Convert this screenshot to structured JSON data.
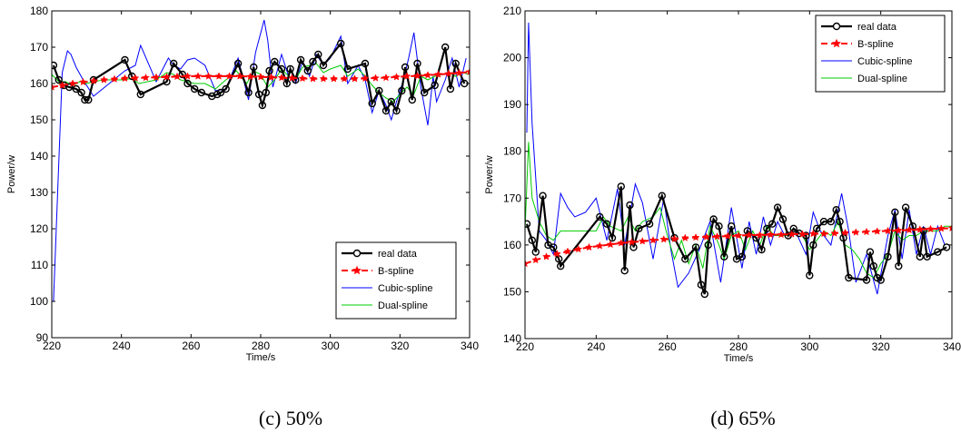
{
  "chart_data": [
    {
      "type": "line",
      "caption": "(c) 50%",
      "xlabel": "Time/s",
      "ylabel": "Power/w",
      "xlim": [
        220,
        340
      ],
      "ylim": [
        90,
        180
      ],
      "xticks": [
        "220",
        "240",
        "260",
        "280",
        "300",
        "320",
        "340"
      ],
      "yticks": [
        "90",
        "100",
        "110",
        "120",
        "130",
        "140",
        "150",
        "160",
        "170",
        "180"
      ],
      "legend_position": "bottom-right",
      "grid": false,
      "series": [
        {
          "name": "real data",
          "color": "#000000",
          "style": "solid-circle",
          "x": [
            220.5,
            222,
            223.5,
            225,
            227,
            228.5,
            229.5,
            230.5,
            232,
            241,
            243,
            245.5,
            253,
            255,
            257.5,
            259,
            261,
            263,
            266,
            267.5,
            268.5,
            270,
            273.5,
            276.5,
            278,
            279.5,
            280.5,
            281.5,
            282.5,
            284,
            286,
            287.5,
            288.5,
            290,
            291.5,
            293.5,
            295,
            296.5,
            298,
            303,
            305,
            310,
            312,
            314,
            316,
            317.5,
            319,
            320.5,
            321.5,
            323.5,
            325,
            327,
            330,
            333,
            334.5,
            336,
            338.5
          ],
          "y": [
            165,
            161,
            159.5,
            159,
            158.5,
            157.5,
            155.5,
            155.5,
            161,
            166.5,
            162,
            157,
            160.5,
            165.5,
            162.5,
            160,
            158.5,
            157.5,
            156.5,
            157,
            157.5,
            158.5,
            165.5,
            157.5,
            164.5,
            157,
            154,
            157.5,
            163.5,
            166,
            164,
            160,
            164,
            161,
            166.5,
            163.5,
            166,
            168,
            165,
            171,
            164,
            165.5,
            154.5,
            158,
            152.5,
            155,
            152.5,
            158,
            164.5,
            155.5,
            165.5,
            157.5,
            159.5,
            170,
            158.5,
            165.5,
            160
          ]
        },
        {
          "name": "B-spline",
          "color": "#ff0000",
          "style": "dashed-star",
          "x": [
            220,
            223,
            226,
            229,
            232,
            235,
            238,
            241,
            244,
            247,
            250,
            253,
            256,
            259,
            262,
            265,
            268,
            271,
            274,
            277,
            280,
            283,
            286,
            289,
            292,
            295,
            298,
            301,
            304,
            307,
            310,
            313,
            316,
            319,
            322,
            325,
            328,
            331,
            334,
            337,
            340
          ],
          "y": [
            159,
            159.5,
            160,
            160.4,
            160.7,
            161,
            161.2,
            161.4,
            161.5,
            161.6,
            161.7,
            161.8,
            161.9,
            162,
            162,
            162,
            162,
            162,
            162,
            161.9,
            161.8,
            161.7,
            161.6,
            161.5,
            161.4,
            161.3,
            161.3,
            161.3,
            161.3,
            161.3,
            161.4,
            161.5,
            161.6,
            161.8,
            162,
            162.1,
            162.3,
            162.5,
            162.7,
            162.9,
            163.2
          ]
        },
        {
          "name": "Cubic-spline",
          "color": "#0000ff",
          "style": "solid",
          "x": [
            220.5,
            223,
            224.5,
            225.5,
            227,
            229,
            232,
            241,
            244,
            245.5,
            250,
            253.5,
            255,
            257,
            259,
            261,
            264,
            267,
            270,
            273.5,
            276.5,
            278.5,
            281,
            282,
            283.5,
            286,
            288,
            290,
            292,
            294,
            296,
            298,
            300,
            303,
            305,
            308,
            310,
            312,
            314,
            316,
            317.5,
            319,
            321,
            322.5,
            324,
            326,
            328,
            329.5,
            330.5,
            333,
            335,
            337,
            339
          ],
          "y": [
            100,
            163,
            169,
            168,
            164.5,
            161,
            156.5,
            163.5,
            165,
            170.5,
            160.5,
            167,
            165,
            164,
            166.5,
            167,
            165,
            158,
            158.5,
            167,
            155.5,
            168.5,
            177.5,
            172,
            159,
            168,
            162,
            160,
            166,
            162,
            168,
            165,
            167,
            173,
            160,
            165,
            161,
            152,
            158,
            154,
            150,
            155,
            161,
            167,
            174,
            159,
            148.5,
            162,
            155,
            161,
            167,
            159,
            167
          ]
        },
        {
          "name": "Dual-spline",
          "color": "#00cc00",
          "style": "solid",
          "x": [
            220,
            222,
            224,
            226,
            228,
            230,
            232,
            235,
            238,
            241,
            243,
            245,
            250,
            253,
            255,
            257,
            259,
            261,
            264,
            267,
            270,
            273,
            276,
            278,
            280,
            282,
            284,
            286,
            288,
            290,
            292,
            294,
            296,
            298,
            300,
            303,
            305,
            308,
            310,
            312,
            314,
            316,
            318,
            320,
            322,
            324,
            326,
            328,
            330,
            332,
            334,
            336,
            338,
            340
          ],
          "y": [
            162.5,
            160.5,
            160.5,
            159.5,
            160.5,
            160,
            160.5,
            161,
            161,
            161,
            161.5,
            160,
            161,
            163,
            162.5,
            161,
            160.5,
            160,
            160,
            158.5,
            161,
            163.5,
            160,
            163.5,
            162.5,
            159,
            161,
            164,
            162,
            161,
            164.5,
            165,
            165.5,
            163,
            164,
            165,
            162,
            164,
            162,
            159.5,
            157.5,
            156,
            155,
            157,
            159,
            157,
            162,
            161,
            162,
            162.5,
            163,
            162,
            163,
            162.5
          ]
        }
      ],
      "annotations": [],
      "title": ""
    },
    {
      "type": "line",
      "caption": "(d) 65%",
      "xlabel": "Time/s",
      "ylabel": "Power/w",
      "xlim": [
        220,
        340
      ],
      "ylim": [
        140,
        210
      ],
      "xticks": [
        "220",
        "240",
        "260",
        "280",
        "300",
        "320",
        "340"
      ],
      "yticks": [
        "140",
        "150",
        "160",
        "170",
        "180",
        "190",
        "200",
        "210"
      ],
      "legend_position": "top-right",
      "grid": false,
      "series": [
        {
          "name": "real data",
          "color": "#000000",
          "style": "solid-circle",
          "x": [
            220.5,
            222,
            223,
            225,
            226.5,
            228,
            229.5,
            230,
            241,
            243,
            244.5,
            247,
            248,
            249.5,
            250.5,
            252,
            255,
            258.5,
            262,
            265,
            268,
            269.5,
            270.5,
            271.5,
            273,
            274.5,
            276,
            278,
            279.5,
            281,
            282.5,
            285,
            286.5,
            288,
            289.5,
            291,
            292.5,
            294,
            295.5,
            297,
            299,
            300,
            301,
            302,
            304,
            306,
            307.5,
            308.5,
            309.5,
            311,
            316,
            317,
            318,
            319,
            320,
            322,
            324,
            325,
            327,
            329,
            331,
            332,
            333,
            336,
            338.5
          ],
          "y": [
            164.5,
            161,
            158.5,
            170.5,
            160,
            159.5,
            157,
            155.5,
            166,
            164.5,
            161.5,
            172.5,
            154.5,
            168.5,
            159.5,
            163.5,
            164.5,
            170.5,
            161.5,
            157,
            159.5,
            151.5,
            149.5,
            160,
            165.5,
            164,
            157.5,
            164,
            157,
            157.5,
            163,
            161.5,
            159,
            163.5,
            164.5,
            168,
            165.5,
            162,
            163.5,
            162.5,
            162,
            153.5,
            160,
            163.5,
            165,
            165,
            167.5,
            165,
            161.5,
            153,
            152.5,
            158.5,
            155.5,
            153,
            152.5,
            157.5,
            167,
            155.5,
            168,
            164,
            157.5,
            163,
            157.5,
            158.5,
            159.5
          ]
        },
        {
          "name": "B-spline",
          "color": "#ff0000",
          "style": "dashed-star",
          "x": [
            220,
            223,
            226,
            229,
            232,
            235,
            238,
            241,
            244,
            247,
            250,
            253,
            256,
            259,
            262,
            265,
            268,
            271,
            274,
            277,
            280,
            283,
            286,
            289,
            292,
            295,
            298,
            301,
            304,
            307,
            310,
            313,
            316,
            319,
            322,
            325,
            328,
            331,
            334,
            337,
            340
          ],
          "y": [
            156,
            156.8,
            157.5,
            158.1,
            158.6,
            159.1,
            159.5,
            159.8,
            160.1,
            160.4,
            160.6,
            160.8,
            161,
            161.2,
            161.3,
            161.5,
            161.6,
            161.7,
            161.8,
            161.9,
            162,
            162.1,
            162.1,
            162.2,
            162.2,
            162.3,
            162.3,
            162.4,
            162.4,
            162.5,
            162.6,
            162.7,
            162.8,
            162.9,
            163,
            163.1,
            163.2,
            163.3,
            163.4,
            163.5,
            163.6
          ]
        },
        {
          "name": "Cubic-spline",
          "color": "#0000ff",
          "style": "solid",
          "x": [
            220.5,
            221,
            222,
            224,
            226,
            228,
            230,
            232,
            234,
            237,
            240,
            243,
            246,
            248,
            251,
            253,
            256,
            259,
            261,
            263,
            266,
            269,
            272,
            275,
            278,
            281,
            283,
            285,
            287,
            289,
            291,
            293,
            296,
            299,
            301,
            303,
            306,
            309,
            311,
            313,
            316,
            319,
            322,
            324,
            326,
            328,
            330,
            332,
            334,
            336,
            338
          ],
          "y": [
            184,
            207.5,
            186,
            163,
            161,
            158,
            171,
            168,
            166,
            167,
            170,
            161,
            172,
            160,
            173,
            169,
            157,
            170,
            159,
            151,
            154,
            159,
            165,
            152,
            168,
            155,
            165,
            158,
            166,
            160,
            165,
            162,
            163,
            158,
            167,
            163,
            160,
            171,
            163,
            152,
            158,
            149.5,
            162,
            167.5,
            157,
            167.5,
            158,
            164,
            158,
            164,
            160
          ]
        },
        {
          "name": "Dual-spline",
          "color": "#00cc00",
          "style": "solid",
          "x": [
            220,
            221,
            222,
            224,
            226,
            228,
            230,
            232,
            236,
            240,
            242,
            244,
            247,
            249,
            251,
            253,
            256,
            258,
            260,
            262,
            264,
            266,
            268,
            270,
            272,
            274,
            276,
            278,
            280,
            282,
            284,
            286,
            288,
            290,
            292,
            294,
            296,
            298,
            300,
            302,
            304,
            306,
            308,
            310,
            312,
            314,
            316,
            318,
            320,
            322,
            324,
            326,
            328,
            330,
            332,
            334,
            336,
            338,
            340
          ],
          "y": [
            163,
            182,
            170,
            165,
            162,
            161,
            163,
            163,
            163,
            163,
            166,
            164,
            163,
            166,
            163,
            165,
            166,
            168,
            162,
            157,
            161,
            156,
            160,
            155,
            164,
            161,
            157,
            162,
            163,
            159,
            163,
            160,
            164,
            162,
            162,
            162,
            163,
            162,
            159,
            161,
            163,
            162,
            165,
            160,
            159,
            157,
            154,
            153,
            156,
            158,
            163,
            161,
            162,
            162,
            163,
            163,
            163,
            164,
            164
          ]
        }
      ],
      "annotations": [],
      "title": ""
    }
  ]
}
